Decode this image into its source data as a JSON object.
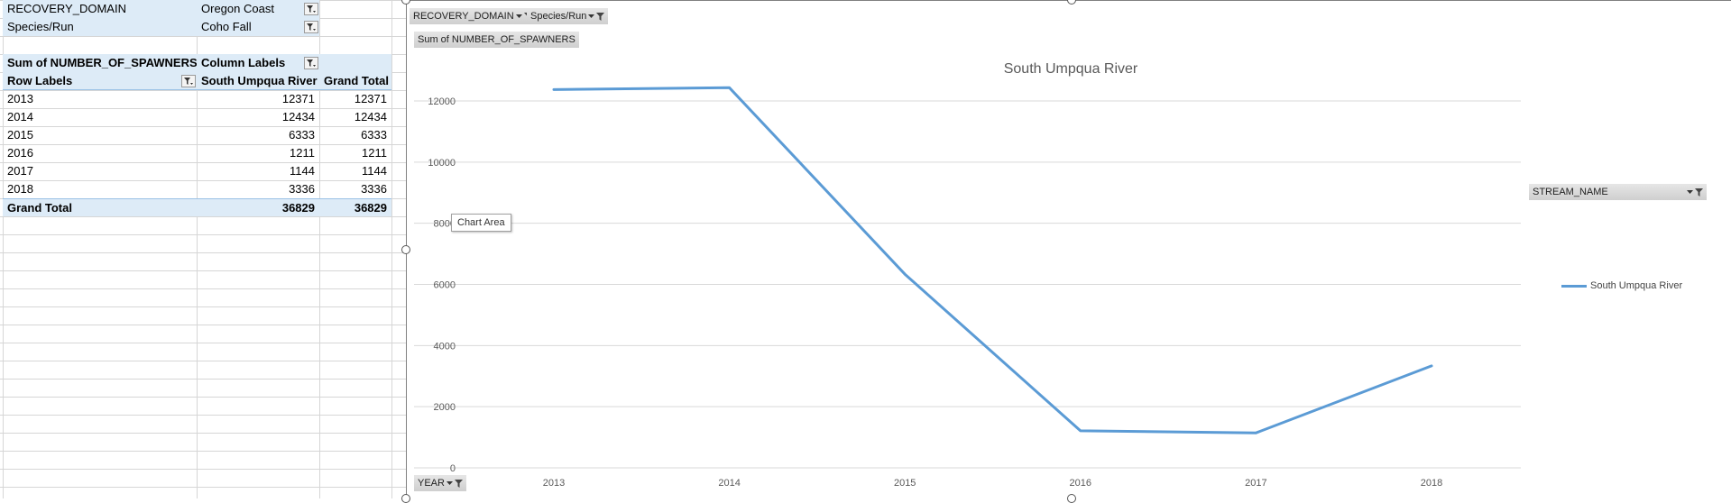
{
  "pivot": {
    "filters": [
      {
        "field": "RECOVERY_DOMAIN",
        "value": "Oregon Coast"
      },
      {
        "field": "Species/Run",
        "value": "Coho  Fall"
      }
    ],
    "header": {
      "values_label": "Sum of NUMBER_OF_SPAWNERS",
      "column_labels": "Column Labels",
      "row_labels": "Row Labels",
      "column_name": "South Umpqua River",
      "grand_total": "Grand Total"
    },
    "rows": [
      {
        "label": "2013",
        "value": "12371",
        "total": "12371"
      },
      {
        "label": "2014",
        "value": "12434",
        "total": "12434"
      },
      {
        "label": "2015",
        "value": "6333",
        "total": "6333"
      },
      {
        "label": "2016",
        "value": "1211",
        "total": "1211"
      },
      {
        "label": "2017",
        "value": "1144",
        "total": "1144"
      },
      {
        "label": "2018",
        "value": "3336",
        "total": "3336"
      }
    ],
    "grand_total_row": {
      "label": "Grand Total",
      "value": "36829",
      "total": "36829"
    }
  },
  "chart_buttons": {
    "recovery_domain": "RECOVERY_DOMAIN",
    "species_run": "Species/Run",
    "values": "Sum of NUMBER_OF_SPAWNERS",
    "year": "YEAR",
    "stream_name": "STREAM_NAME"
  },
  "tooltip": "Chart Area",
  "chart_data": {
    "type": "line",
    "title": "South Umpqua River",
    "x": [
      "2013",
      "2014",
      "2015",
      "2016",
      "2017",
      "2018"
    ],
    "series": [
      {
        "name": "South Umpqua River",
        "values": [
          12371,
          12434,
          6333,
          1211,
          1144,
          3336
        ],
        "color": "#5b9bd5"
      }
    ],
    "ylim": [
      0,
      12000
    ],
    "yticks": [
      "0",
      "2000",
      "4000",
      "6000",
      "8000",
      "10000",
      "12000"
    ],
    "xlabel": "",
    "ylabel": "",
    "grid": true,
    "legend": "right"
  }
}
